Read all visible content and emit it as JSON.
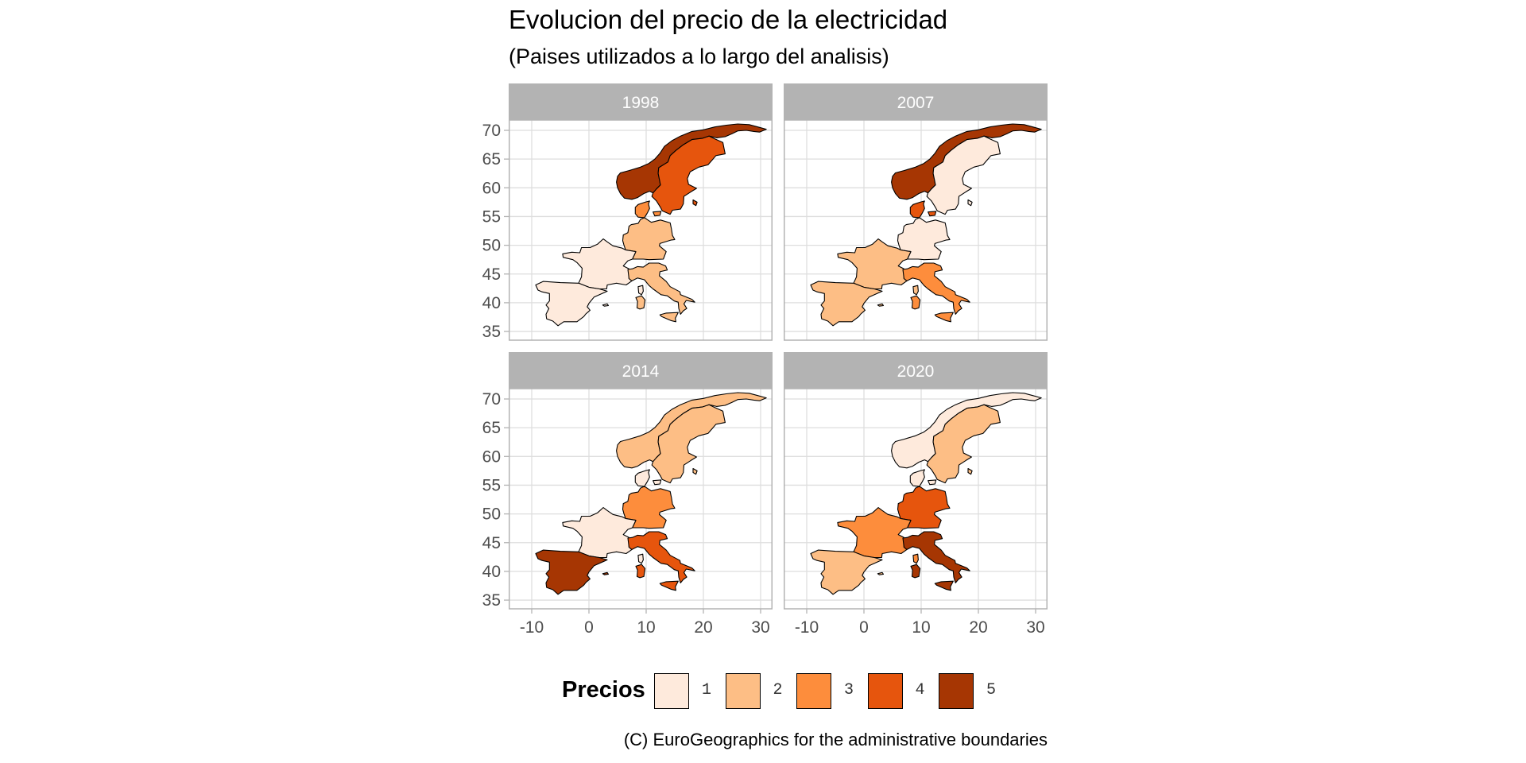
{
  "chart_data": {
    "type": "choropleth-map-facets",
    "title": "Evolucion del precio de la electricidad",
    "subtitle": "(Paises utilizados a lo largo del analisis)",
    "caption": "(C) EuroGeographics for the administrative boundaries",
    "xlim": [
      -12,
      32
    ],
    "ylim": [
      34,
      72
    ],
    "x_ticks": [
      "-10",
      "0",
      "10",
      "20",
      "30"
    ],
    "x_tick_values": [
      -10,
      0,
      10,
      20,
      30
    ],
    "y_ticks": [
      "70",
      "65",
      "60",
      "55",
      "50",
      "45",
      "40",
      "35"
    ],
    "y_tick_values": [
      70,
      65,
      60,
      55,
      50,
      45,
      40,
      35
    ],
    "grid": true,
    "legend": {
      "title": "Precios",
      "position": "bottom",
      "levels": [
        "1",
        "2",
        "3",
        "4",
        "5"
      ],
      "colors": [
        "#feeadc",
        "#fdbe85",
        "#fd8d3c",
        "#e6550d",
        "#a63603"
      ]
    },
    "countries": [
      "Norway",
      "Sweden",
      "Denmark",
      "Germany",
      "France",
      "Spain",
      "Italy"
    ],
    "facets": [
      {
        "label": "1998",
        "values": {
          "Norway": 5,
          "Sweden": 4,
          "Denmark": 3,
          "Germany": 2,
          "France": 1,
          "Spain": 1,
          "Italy": 2
        }
      },
      {
        "label": "2007",
        "values": {
          "Norway": 5,
          "Sweden": 1,
          "Denmark": 4,
          "Germany": 1,
          "France": 2,
          "Spain": 2,
          "Italy": 3
        }
      },
      {
        "label": "2014",
        "values": {
          "Norway": 2,
          "Sweden": 2,
          "Denmark": 1,
          "Germany": 3,
          "France": 1,
          "Spain": 5,
          "Italy": 4
        }
      },
      {
        "label": "2020",
        "values": {
          "Norway": 1,
          "Sweden": 2,
          "Denmark": 1,
          "Germany": 4,
          "France": 3,
          "Spain": 2,
          "Italy": 5
        }
      }
    ]
  },
  "colors": {
    "strip": "#b3b3b3",
    "grid": "#dedede",
    "border": "#b3b3b3"
  }
}
